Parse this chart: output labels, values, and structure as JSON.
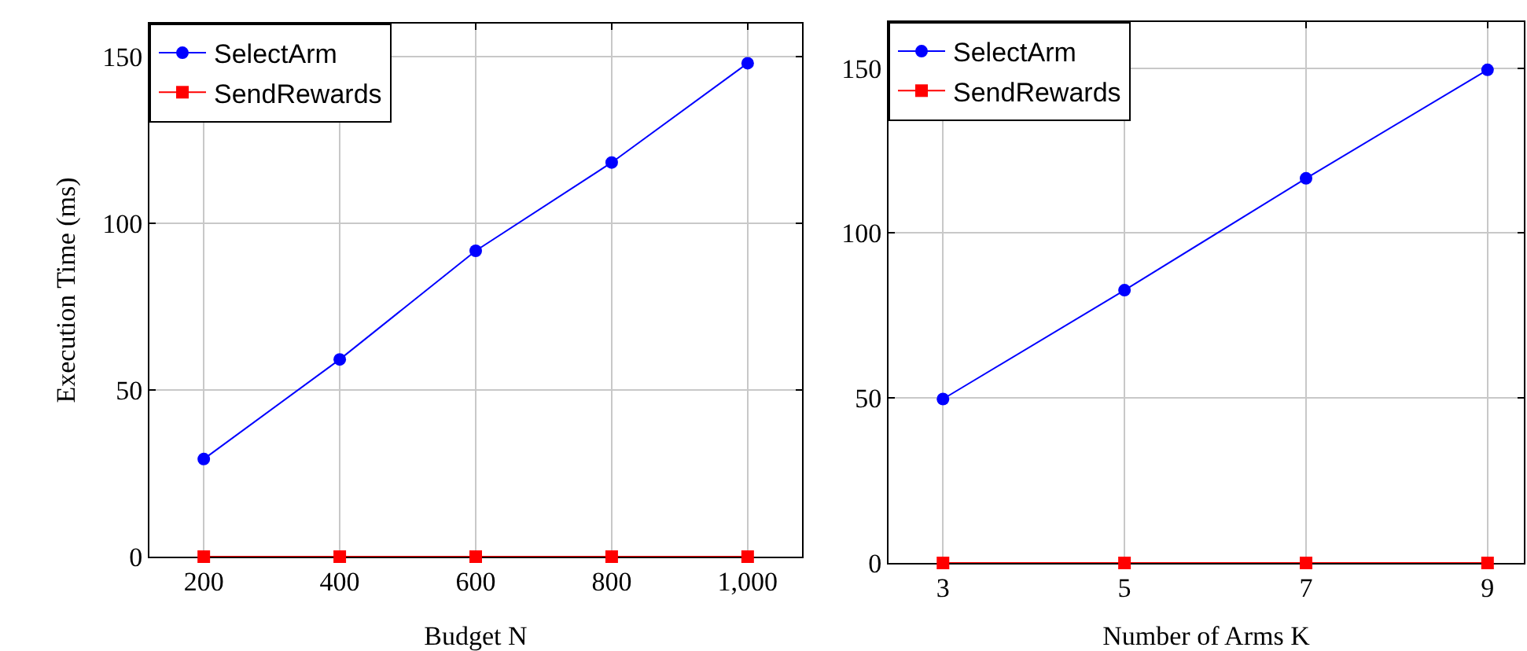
{
  "chart_data": [
    {
      "type": "line",
      "xlabel": "Budget N",
      "ylabel": "Execution Time (ms)",
      "x": [
        200,
        400,
        600,
        800,
        1000
      ],
      "xlim": [
        120,
        1080
      ],
      "xticks": [
        200,
        400,
        600,
        800,
        {
          "value": 1000,
          "label": "1,000"
        }
      ],
      "ylim": [
        0,
        160
      ],
      "yticks": [
        0,
        50,
        100,
        150
      ],
      "grid": true,
      "legend": "top left",
      "series": [
        {
          "name": "SelectArm",
          "color": "#0000ff",
          "marker": "circle",
          "values": [
            29.3,
            59.2,
            91.8,
            118.3,
            148.1
          ]
        },
        {
          "name": "SendRewards",
          "color": "#ff0000",
          "marker": "square",
          "values": [
            0,
            0,
            0,
            0,
            0
          ]
        }
      ]
    },
    {
      "type": "line",
      "xlabel": "Number of Arms K",
      "x": [
        3,
        5,
        7,
        9
      ],
      "xlim": [
        2.4,
        9.4
      ],
      "xticks": [
        3,
        5,
        7,
        9
      ],
      "ylim": [
        0,
        164
      ],
      "yticks": [
        0,
        50,
        100,
        150
      ],
      "grid": true,
      "legend": "top left",
      "series": [
        {
          "name": "SelectArm",
          "color": "#0000ff",
          "marker": "circle",
          "values": [
            49.7,
            82.7,
            116.6,
            149.5
          ]
        },
        {
          "name": "SendRewards",
          "color": "#ff0000",
          "marker": "square",
          "values": [
            0,
            0,
            0,
            0
          ]
        }
      ]
    }
  ]
}
